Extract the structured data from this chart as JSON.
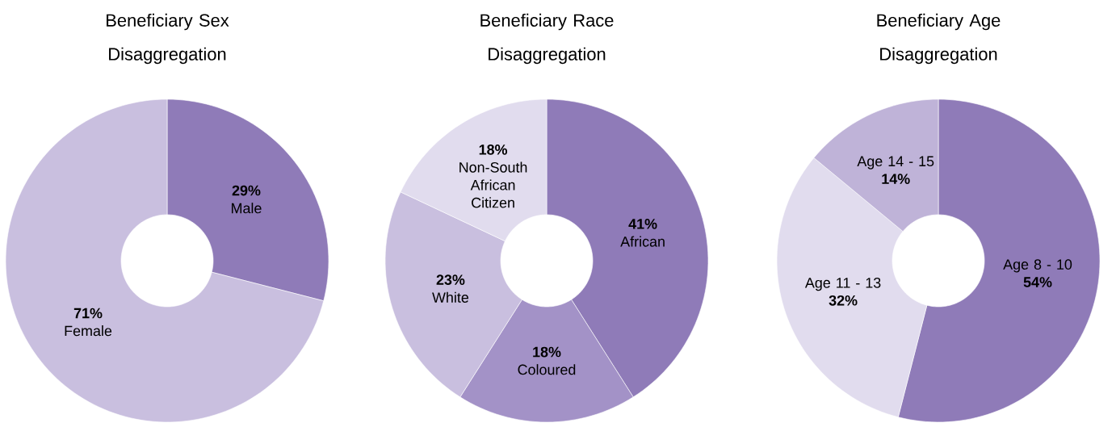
{
  "chart_data": [
    {
      "type": "donut",
      "title": "Beneficiary Sex Disaggregation",
      "categories": [
        "Male",
        "Female"
      ],
      "values": [
        29,
        71
      ],
      "value_labels": [
        "29%",
        "71%"
      ],
      "colors": [
        "#8f7bb8",
        "#c9bfdf"
      ]
    },
    {
      "type": "donut",
      "title": "Beneficiary Race Disaggregation",
      "categories": [
        "African",
        "Coloured",
        "White",
        "Non-South African Citizen"
      ],
      "values": [
        41,
        18,
        23,
        18
      ],
      "value_labels": [
        "41%",
        "18%",
        "23%",
        "18%"
      ],
      "colors": [
        "#8f7bb8",
        "#a392c7",
        "#c9bfdf",
        "#e1dcee"
      ]
    },
    {
      "type": "donut",
      "title": "Beneficiary Age Disaggregation",
      "categories": [
        "Age 8 - 10",
        "Age 11 - 13",
        "Age 14 - 15"
      ],
      "values": [
        54,
        32,
        14
      ],
      "value_labels": [
        "54%",
        "32%",
        "14%"
      ],
      "colors": [
        "#8f7bb8",
        "#e1dcee",
        "#bfb3d8"
      ]
    }
  ]
}
